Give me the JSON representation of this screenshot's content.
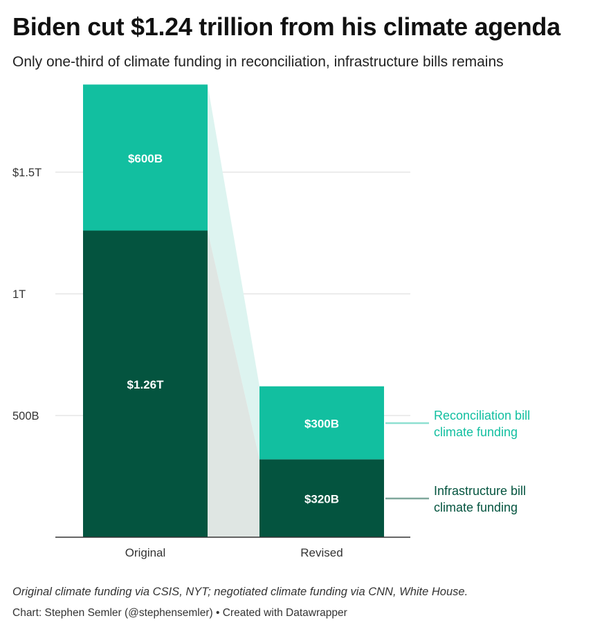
{
  "header": {
    "title": "Biden cut $1.24 trillion from his climate agenda",
    "subtitle": "Only one-third of climate funding in reconciliation, infrastructure bills remains"
  },
  "chart_data": {
    "type": "bar",
    "stacked": true,
    "categories": [
      "Original",
      "Revised"
    ],
    "series": [
      {
        "name": "Infrastructure bill climate funding",
        "values": [
          1260,
          320
        ],
        "labels": [
          "$1.26T",
          "$320B"
        ],
        "color": "#04543f",
        "connector_color": "#dfe6e3",
        "legend_line_color": "#7fa79b"
      },
      {
        "name": "Reconciliation bill climate funding",
        "values": [
          600,
          300
        ],
        "labels": [
          "$600B",
          "$300B"
        ],
        "color": "#12bfa0",
        "connector_color": "#ddf4f0",
        "legend_line_color": "#8ee0d1"
      }
    ],
    "yticks": [
      {
        "value": 500,
        "label": "500B"
      },
      {
        "value": 1000,
        "label": "1T"
      },
      {
        "value": 1500,
        "label": "$1.5T"
      }
    ],
    "ylim": [
      0,
      1860
    ],
    "unit": "billions of dollars",
    "grid": true,
    "legend_placement": "right, inline labels",
    "accent_colors": {
      "legend_text_reconciliation": "#12bfa0",
      "legend_text_infrastructure": "#04543f",
      "grid": "#d9d9d9",
      "axis": "#333333"
    }
  },
  "footer": {
    "source": "Original climate funding via CSIS, NYT; negotiated climate funding via CNN, White House.",
    "credit": "Chart: Stephen Semler (@stephensemler) • Created with Datawrapper"
  }
}
